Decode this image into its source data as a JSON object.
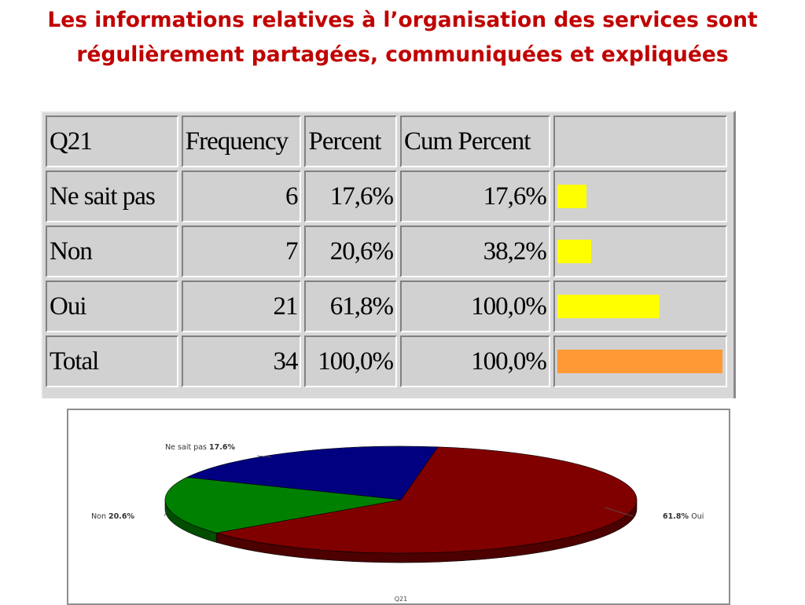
{
  "title": "Les informations relatives à l’organisation des services sont régulièrement partagées, communiquées et expliquées",
  "table": {
    "headers": [
      "Q21",
      "Frequency",
      "Percent",
      "Cum Percent",
      ""
    ],
    "rows": [
      {
        "label": "Ne sait pas",
        "frequency": "6",
        "percent": "17,6%",
        "cum": "17,6%",
        "bar_fraction": 0.176,
        "bar_color": "#ffff00"
      },
      {
        "label": "Non",
        "frequency": "7",
        "percent": "20,6%",
        "cum": "38,2%",
        "bar_fraction": 0.206,
        "bar_color": "#ffff00"
      },
      {
        "label": "Oui",
        "frequency": "21",
        "percent": "61,8%",
        "cum": "100,0%",
        "bar_fraction": 0.618,
        "bar_color": "#ffff00"
      },
      {
        "label": "Total",
        "frequency": "34",
        "percent": "100,0%",
        "cum": "100,0%",
        "bar_fraction": 1.0,
        "bar_color": "#ff9933"
      }
    ]
  },
  "chart_data": {
    "type": "pie",
    "title": "Q21",
    "categories": [
      "Oui",
      "Ne sait pas",
      "Non"
    ],
    "values": [
      61.8,
      17.6,
      20.6
    ],
    "labels": [
      {
        "name": "Ne sait pas",
        "value_text": "17.6%"
      },
      {
        "name": "Non",
        "value_text": "20.6%"
      },
      {
        "name": "Oui",
        "value_text": "61.8%"
      }
    ],
    "colors": {
      "Oui": "#800000",
      "Ne sait pas": "#008000",
      "Non": "#000080"
    },
    "style": "3d"
  }
}
